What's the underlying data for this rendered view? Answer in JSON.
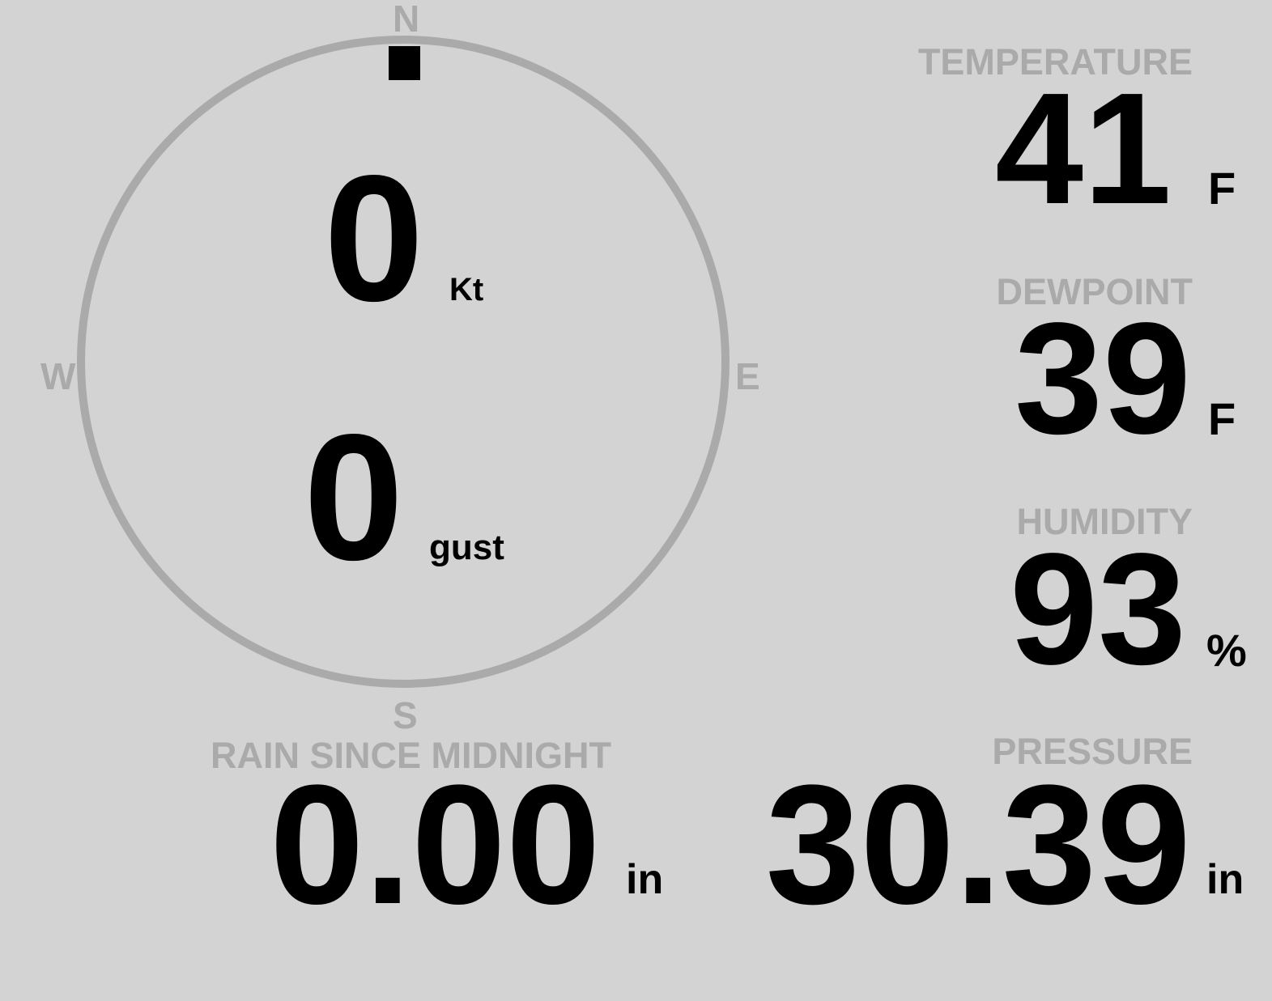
{
  "colors": {
    "background": "#d3d3d3",
    "muted": "#aaaaaa",
    "value": "#000000"
  },
  "compass": {
    "north": "N",
    "south": "S",
    "east": "E",
    "west": "W",
    "wind_direction_deg": 0
  },
  "wind": {
    "speed": "0",
    "speed_unit": "Kt",
    "gust": "0",
    "gust_unit": "gust"
  },
  "temperature": {
    "label": "TEMPERATURE",
    "value": "41",
    "unit": "F"
  },
  "dewpoint": {
    "label": "DEWPOINT",
    "value": "39",
    "unit": "F"
  },
  "humidity": {
    "label": "HUMIDITY",
    "value": "93",
    "unit": "%"
  },
  "rain": {
    "label": "RAIN SINCE MIDNIGHT",
    "value": "0.00",
    "unit": "in"
  },
  "pressure": {
    "label": "PRESSURE",
    "value": "30.39",
    "unit": "in"
  }
}
